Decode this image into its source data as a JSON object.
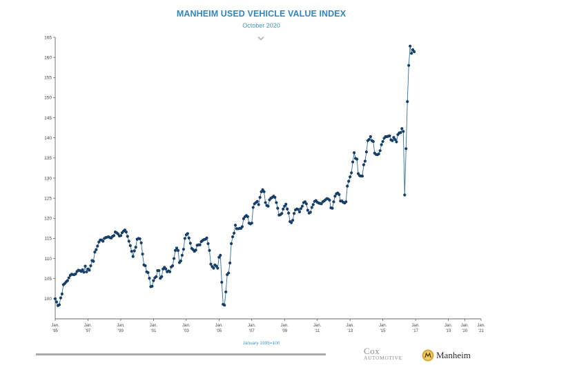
{
  "header": {
    "title": "MANHEIM USED VEHICLE VALUE INDEX",
    "subtitle": "October 2020"
  },
  "footnote": "January 1995=100",
  "logos": {
    "cox_line1": "Cox",
    "cox_line2": "AUTOMOTIVE",
    "manheim": "Manheim"
  },
  "colors": {
    "series": "#163e66",
    "title": "#2f87bd",
    "footnote": "#3f96c9"
  },
  "chart_data": {
    "type": "line",
    "title": "MANHEIM USED VEHICLE VALUE INDEX",
    "subtitle": "October 2020",
    "xlabel": "January 1995=100",
    "ylabel": "",
    "ylim": [
      95,
      165
    ],
    "yticks": [
      100,
      105,
      110,
      115,
      120,
      125,
      130,
      135,
      140,
      145,
      150,
      155,
      160,
      165
    ],
    "xlim": [
      "1995-01",
      "2021-01"
    ],
    "xticks": [
      {
        "top": "Jan.",
        "bottom": "'95"
      },
      {
        "top": "Jan.",
        "bottom": "'97"
      },
      {
        "top": "Jan.",
        "bottom": "'99"
      },
      {
        "top": "Jan.",
        "bottom": "'01"
      },
      {
        "top": "Jan.",
        "bottom": "'03"
      },
      {
        "top": "Jan.",
        "bottom": "'05"
      },
      {
        "top": "Jan.",
        "bottom": "'07"
      },
      {
        "top": "Jan.",
        "bottom": "'09"
      },
      {
        "top": "Jan.",
        "bottom": "'11"
      },
      {
        "top": "Jan.",
        "bottom": "'13"
      },
      {
        "top": "Jan.",
        "bottom": "'15"
      },
      {
        "top": "Jan.",
        "bottom": "'17"
      },
      {
        "top": "Jan.",
        "bottom": "'19"
      },
      {
        "top": "Jan.",
        "bottom": "'20"
      },
      {
        "top": "Jan.",
        "bottom": "'21"
      }
    ],
    "grid": false,
    "legend": "none",
    "start": "1995-01",
    "frequency": "monthly",
    "values": [
      100,
      99.2,
      98.3,
      98.5,
      100.2,
      101.2,
      103.5,
      103.8,
      104.2,
      104.5,
      105.2,
      105.8,
      106.1,
      106,
      106,
      106.2,
      106.8,
      107.1,
      107,
      106.8,
      107.2,
      106.6,
      108.1,
      106.7,
      107.4,
      107.1,
      108.2,
      109.5,
      109.3,
      111.6,
      112.2,
      113.1,
      114.1,
      114.6,
      114.6,
      114.3,
      115,
      115.2,
      115.3,
      115.4,
      115.2,
      115.1,
      115.5,
      115.7,
      116.6,
      116.4,
      116.1,
      115.6,
      115.7,
      116.4,
      116.8,
      117.1,
      116.6,
      115.5,
      114.3,
      113.2,
      111.8,
      110.5,
      111.9,
      112.8,
      114.8,
      115,
      114.9,
      113.9,
      111.1,
      108.4,
      108.2,
      106.7,
      106.5,
      105.1,
      103,
      103.1,
      104.5,
      105.2,
      105.5,
      107,
      107,
      105.1,
      105.5,
      107.4,
      107.8,
      107.4,
      106.7,
      106.9,
      106.7,
      107.9,
      108.2,
      110,
      112,
      112.6,
      112,
      109,
      109.4,
      110.8,
      112.3,
      115,
      115.9,
      116.2,
      115.1,
      113.8,
      112.5,
      112.2,
      111.8,
      112.1,
      113.3,
      113.4,
      113.4,
      114.2,
      114.5,
      114.7,
      114.8,
      115.1,
      113.7,
      112,
      108.6,
      108,
      107.6,
      108.4,
      108.1,
      107.6,
      110.3,
      110.8,
      104.1,
      98.6,
      98.4,
      101.7,
      106,
      106.4,
      108.9,
      113.7,
      115.4,
      116.3,
      118.3,
      117.4,
      117.4,
      117.5,
      117.5,
      117.9,
      119.9,
      120.4,
      120.7,
      120.4,
      118.8,
      118.6,
      118.8,
      122.7,
      123.6,
      123.9,
      124.2,
      123.4,
      125.2,
      126.6,
      127.1,
      126.6,
      123.9,
      123.2,
      123,
      124.6,
      125,
      125.2,
      125.5,
      125.2,
      123.9,
      122.5,
      120.8,
      120.9,
      121.2,
      122.3,
      123,
      123.5,
      122.3,
      121.3,
      119.2,
      118.9,
      119.5,
      121.2,
      122.1,
      122.3,
      122.2,
      121.6,
      122.4,
      123,
      123.9,
      124.1,
      123.6,
      122,
      121.3,
      121.5,
      122.7,
      123.4,
      124.2,
      124.4,
      124,
      123.8,
      123.7,
      123.6,
      124.1,
      124.3,
      124.6,
      124.9,
      124.8,
      124.5,
      122.6,
      122.5,
      124.1,
      125.5,
      126.1,
      126.3,
      125.9,
      124.3,
      124.3,
      124,
      123.8,
      124.1,
      128,
      129.2,
      130.3,
      131.3,
      134,
      136.3,
      134.9,
      134.7,
      131.1,
      130.6,
      130.5,
      130.5,
      133.3,
      134.2,
      136.5,
      139.3,
      139.6,
      140.3,
      139.3,
      139.1,
      136.2,
      135.9,
      135.8,
      136,
      136.8,
      138.3,
      139.1,
      139.9,
      140.3,
      140.3,
      140.4,
      140.5,
      139.5,
      139.3,
      140.1,
      139.6,
      139,
      140.8,
      141.2,
      141.3,
      142.3,
      141.6,
      125.8,
      137.3,
      149,
      158,
      162.8,
      161,
      161.9,
      161.4
    ],
    "series": [
      {
        "name": "",
        "values": "see values"
      }
    ]
  }
}
